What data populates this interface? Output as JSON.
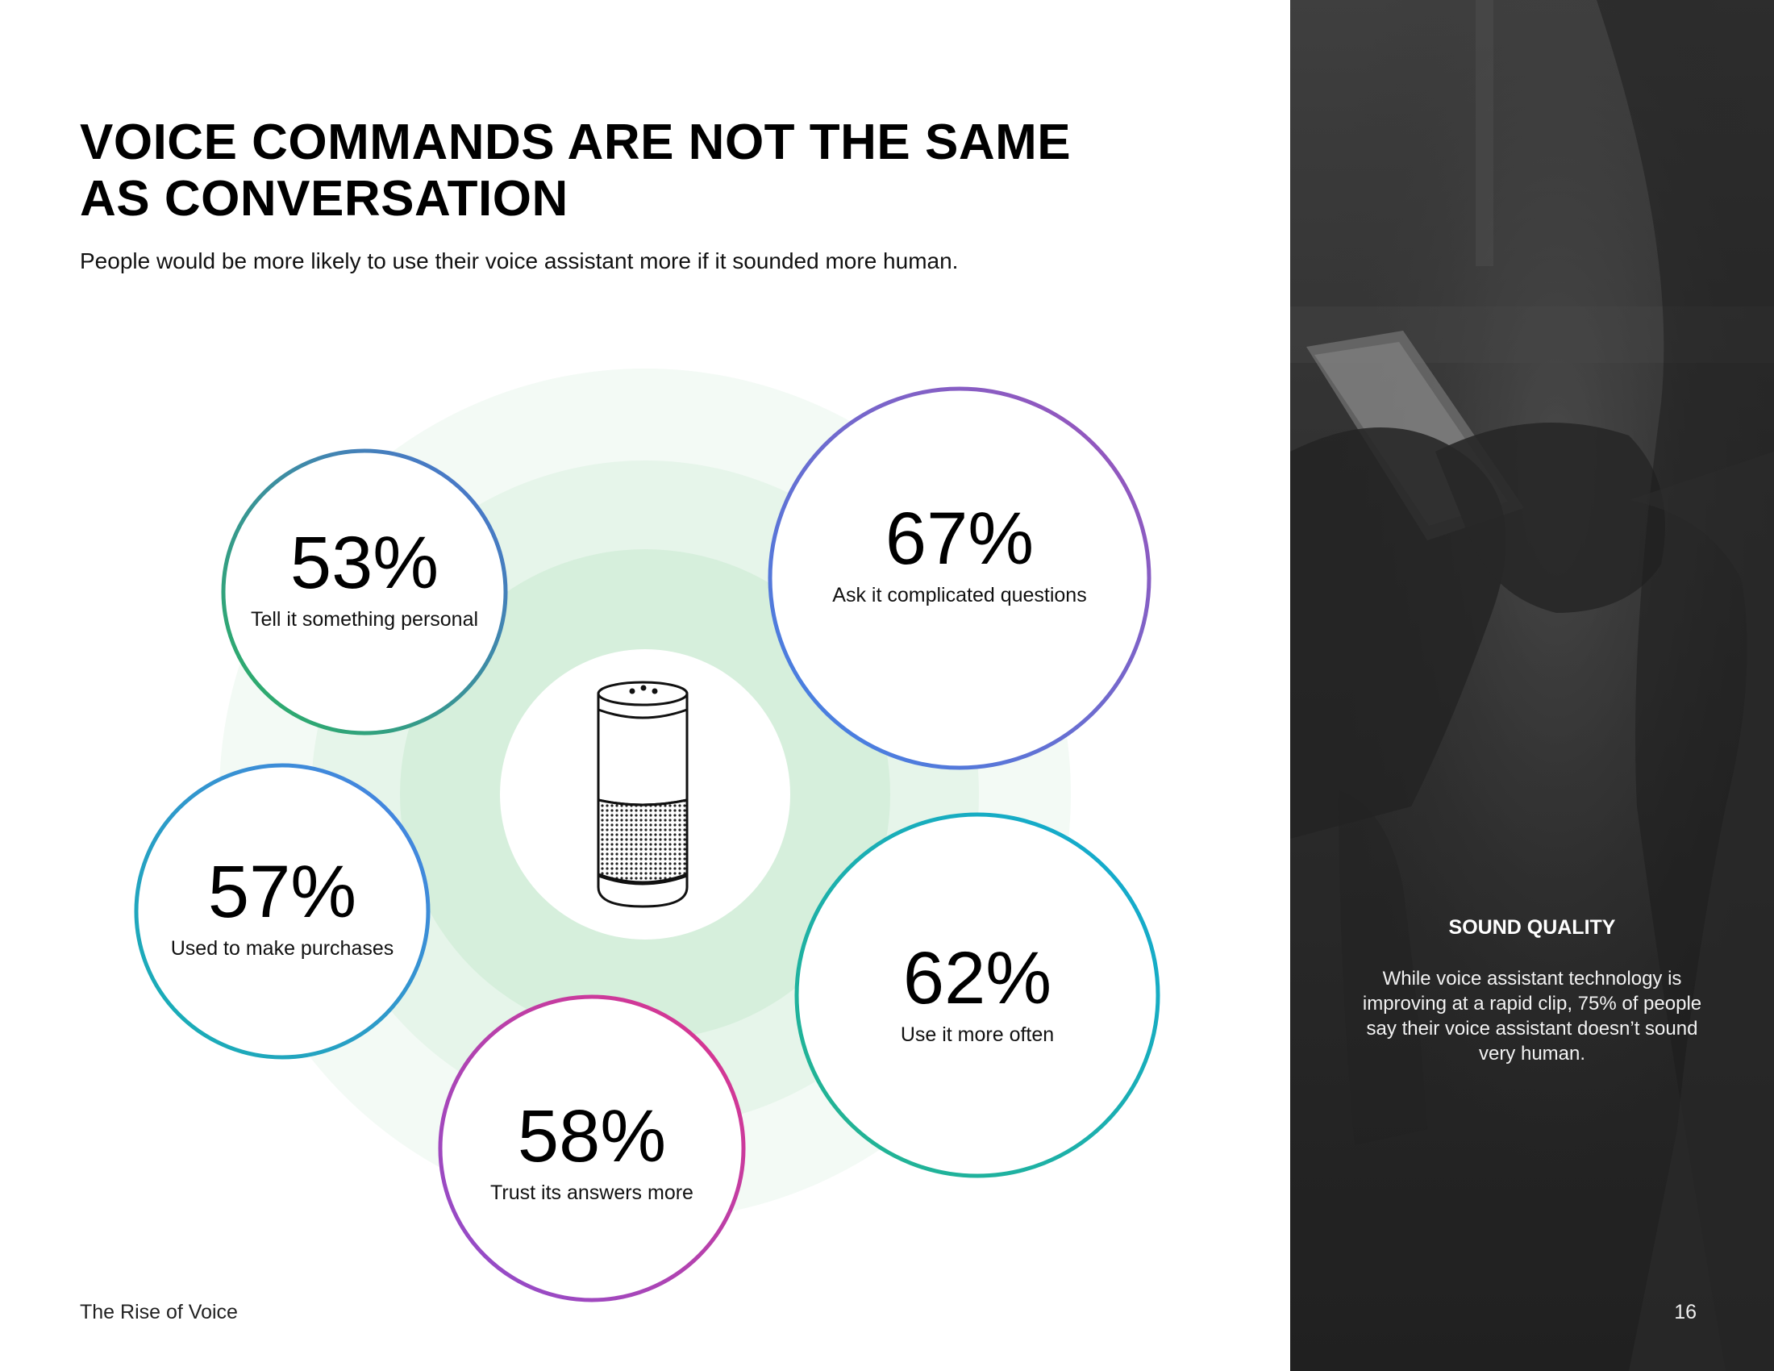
{
  "page": {
    "title": "VOICE COMMANDS ARE NOT THE SAME AS CONVERSATION",
    "subtitle": "People would be more likely to use their voice assistant more if it sounded more human.",
    "footer": "The Rise of Voice",
    "page_number": "16"
  },
  "stats": [
    {
      "value": "53%",
      "label": "Tell it something personal"
    },
    {
      "value": "67%",
      "label": "Ask it complicated questions"
    },
    {
      "value": "57%",
      "label": "Used to make purchases"
    },
    {
      "value": "62%",
      "label": "Use it more often"
    },
    {
      "value": "58%",
      "label": "Trust its answers more"
    }
  ],
  "sidebar": {
    "heading": "SOUND QUALITY",
    "body": "While voice assistant technology is improving at a rapid clip, 75% of people say their voice assistant doesn’t sound very human."
  },
  "colors": {
    "halo": "#d6efdc",
    "green": "#2fb36b",
    "blue": "#3d8fe0",
    "purple": "#9b4fc0",
    "magenta": "#d6378f",
    "teal": "#14b0b8"
  }
}
